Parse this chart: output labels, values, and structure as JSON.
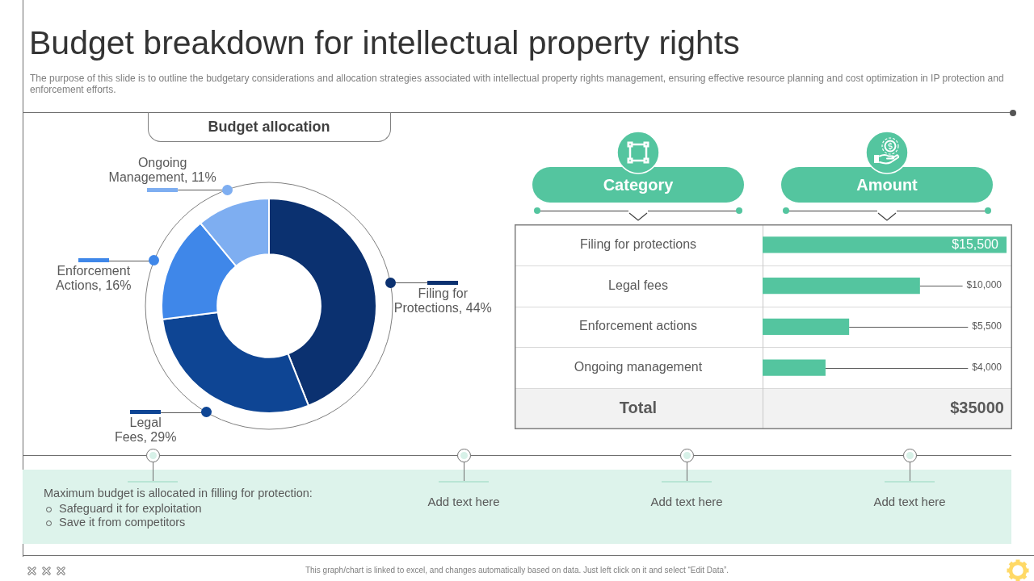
{
  "chart_data": [
    {
      "type": "other",
      "title": "Budget breakdown for intellectual property rights",
      "subtitle": "The purpose of this slide is to outline the budgetary considerations and allocation strategies associated with intellectual property rights management, ensuring effective resource planning and cost optimization in IP protection and enforcement efforts."
    },
    {
      "type": "donut",
      "title": "Budget allocation",
      "categories": [
        "Filing for Protections",
        "Legal Fees",
        "Enforcement Actions",
        "Ongoing Management"
      ],
      "values": [
        44,
        29,
        16,
        11
      ],
      "colors": [
        "#0b3170",
        "#0e4594",
        "#3f87e9",
        "#7eaef1"
      ],
      "value_labels": [
        "44%",
        "29%",
        "16%",
        "11%"
      ],
      "legend": "left"
    },
    {
      "type": "bar",
      "orientation": "horizontal",
      "xlabel": "Amount",
      "ylabel": "Category",
      "categories": [
        "Filing for protections",
        "Legal fees",
        "Enforcement actions",
        "Ongoing management"
      ],
      "values": [
        15500,
        10000,
        5500,
        4000
      ],
      "color": "#54c59f",
      "value_labels": [
        "$15,500",
        "$10,000",
        "$5,500",
        "$4,000"
      ],
      "xlim": [
        0,
        15500
      ],
      "tick_labels": "y",
      "annotations": [
        "Total",
        "$35000"
      ]
    },
    {
      "type": "other",
      "annotations": [
        "Maximum budget is allocated in filling for protection:",
        "Safeguard it for exploitation",
        "Save it from competitors",
        "Add text here",
        "Add text here",
        "Add text here",
        "This graph/chart is linked to excel, and changes automatically based on data. Just left click on it and select “Edit Data”."
      ]
    }
  ]
}
